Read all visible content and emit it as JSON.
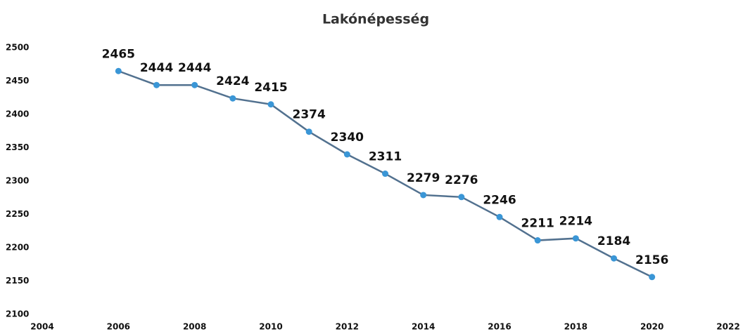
{
  "chart_data": {
    "type": "line",
    "title": "Lakónépesség",
    "x": [
      2006,
      2007,
      2008,
      2009,
      2010,
      2011,
      2012,
      2013,
      2014,
      2015,
      2016,
      2017,
      2018,
      2019,
      2020
    ],
    "values": [
      2465,
      2444,
      2444,
      2424,
      2415,
      2374,
      2340,
      2311,
      2279,
      2276,
      2246,
      2211,
      2214,
      2184,
      2156
    ],
    "color": "#3a96d6",
    "line_color": "#52718f",
    "xlim": [
      2004,
      2022
    ],
    "xticks": [
      2004,
      2006,
      2008,
      2010,
      2012,
      2014,
      2016,
      2018,
      2020,
      2022
    ],
    "ylim": [
      2100,
      2500
    ],
    "yticks": [
      2100,
      2150,
      2200,
      2250,
      2300,
      2350,
      2400,
      2450,
      2500
    ],
    "grid": false
  }
}
